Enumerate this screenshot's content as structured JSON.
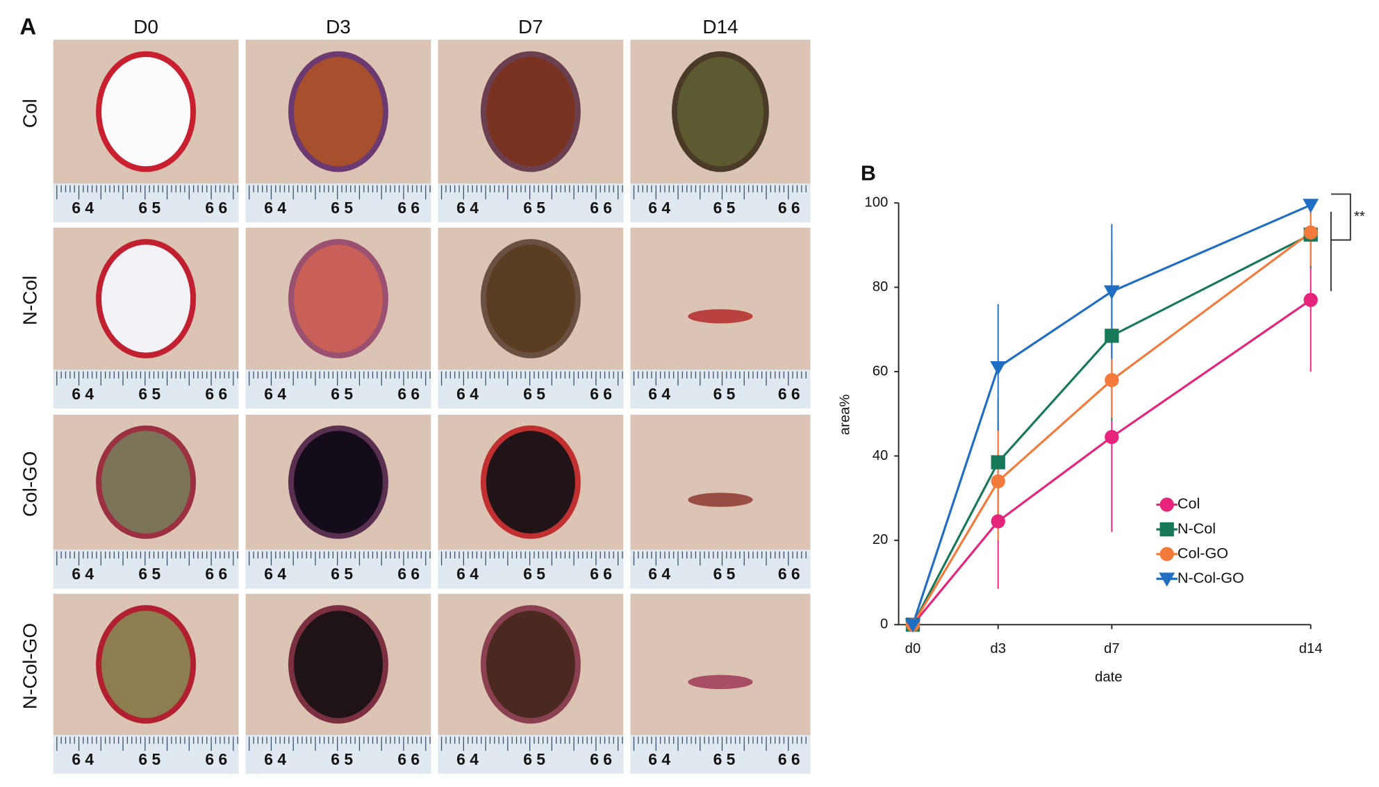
{
  "panel_a": {
    "label": "A",
    "columns": [
      "D0",
      "D3",
      "D7",
      "D14"
    ],
    "rows": [
      "Col",
      "N-Col",
      "Col-GO",
      "N-Col-GO"
    ],
    "ruler_labels": [
      "6 4",
      "6 5",
      "6 6"
    ]
  },
  "chart_data": {
    "type": "line",
    "panel_label": "B",
    "x_label": "date",
    "y_label": "area%",
    "x": [
      0,
      3,
      7,
      14
    ],
    "xlim": [
      -0.5,
      14
    ],
    "xticks": [
      {
        "value": 0,
        "label": "d0"
      },
      {
        "value": 3,
        "label": "d3"
      },
      {
        "value": 7,
        "label": "d7"
      },
      {
        "value": 14,
        "label": "d14"
      }
    ],
    "ylim": [
      0,
      100
    ],
    "yticks": [
      0,
      20,
      40,
      60,
      80,
      100
    ],
    "significance": "**",
    "series": [
      {
        "name": "Col",
        "color": "#e6247c",
        "marker": "circle",
        "values": [
          0,
          24.5,
          44.5,
          77
        ],
        "errors": [
          0,
          16,
          22.5,
          17
        ]
      },
      {
        "name": "N-Col",
        "color": "#17795a",
        "marker": "square",
        "values": [
          0,
          38.5,
          68.5,
          92.5
        ],
        "errors": [
          0,
          15,
          20,
          8
        ]
      },
      {
        "name": "Col-GO",
        "color": "#f47a3c",
        "marker": "circle",
        "values": [
          0,
          34,
          58,
          93
        ],
        "errors": [
          0,
          14,
          9,
          8
        ]
      },
      {
        "name": "N-Col-GO",
        "color": "#1f6ec4",
        "marker": "triangle-down",
        "values": [
          0,
          61,
          79,
          99.5
        ],
        "errors": [
          0,
          15,
          16,
          1
        ]
      }
    ]
  }
}
